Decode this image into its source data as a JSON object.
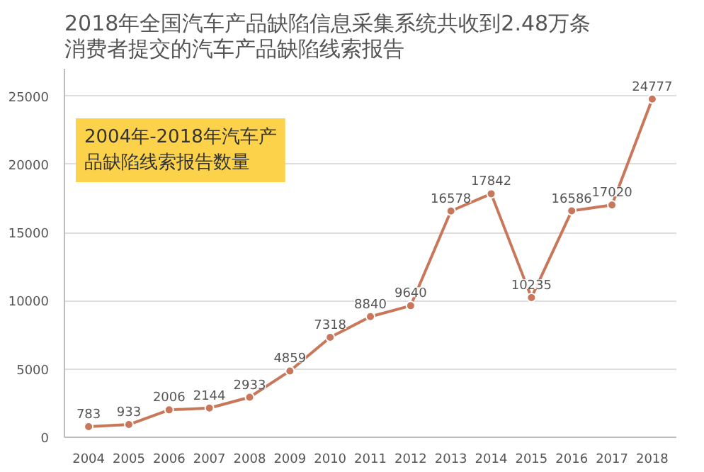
{
  "chart_data": {
    "type": "line",
    "title": "2018年全国汽车产品缺陷信息采集系统共收到2.48万条消费者提交的汽车产品缺陷线索报告",
    "subtitle": "2004年-2018年汽车产品缺陷线索报告数量",
    "categories": [
      "2004",
      "2005",
      "2006",
      "2007",
      "2008",
      "2009",
      "2010",
      "2011",
      "2012",
      "2013",
      "2014",
      "2015",
      "2016",
      "2017",
      "2018"
    ],
    "series": [
      {
        "color": "#c9775a",
        "values": [
          783,
          933,
          2006,
          2144,
          2933,
          4859,
          7318,
          8840,
          9640,
          16578,
          17842,
          10235,
          16586,
          17020,
          24777
        ]
      }
    ],
    "ylim": [
      0,
      27000
    ],
    "yticks": [
      0,
      5000,
      10000,
      15000,
      20000,
      25000
    ],
    "grid": "y",
    "marker": "circle",
    "line_style": "solid",
    "data_labels": true
  }
}
